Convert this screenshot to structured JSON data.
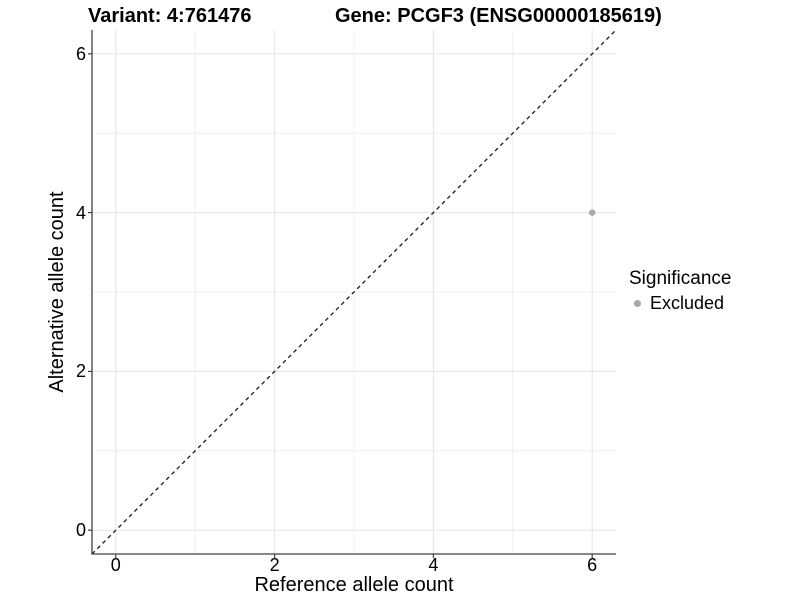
{
  "chart_data": {
    "type": "scatter",
    "title_left": "Variant: 4:761476",
    "title_right": "Gene: PCGF3 (ENSG00000185619)",
    "xlabel": "Reference allele count",
    "ylabel": "Alternative allele count",
    "xlim": [
      -0.3,
      6.3
    ],
    "ylim": [
      -0.3,
      6.3
    ],
    "x_ticks": [
      0,
      2,
      4,
      6
    ],
    "y_ticks": [
      0,
      2,
      4,
      6
    ],
    "x_minor_ticks": [
      1,
      3,
      5
    ],
    "y_minor_ticks": [
      1,
      3,
      5
    ],
    "grid": "major and minor gridlines on white panel",
    "series": [
      {
        "name": "Excluded",
        "marker": "circle",
        "color": "#a9a9a9",
        "points": [
          {
            "x": 6,
            "y": 4
          }
        ]
      }
    ],
    "reference_line": {
      "type": "identity y=x",
      "style": "dashed",
      "color": "#1a1a1a",
      "from": [
        -0.3,
        -0.3
      ],
      "to": [
        6.3,
        6.3
      ]
    },
    "legend": {
      "title": "Significance",
      "position": "right",
      "entries": [
        {
          "label": "Excluded",
          "color": "#a9a9a9",
          "marker": "circle"
        }
      ]
    },
    "colors": {
      "background": "#ffffff",
      "grid_major": "#e6e6e6",
      "grid_minor": "#f0f0f0",
      "axis_line": "#404040",
      "text": "#000000"
    }
  }
}
